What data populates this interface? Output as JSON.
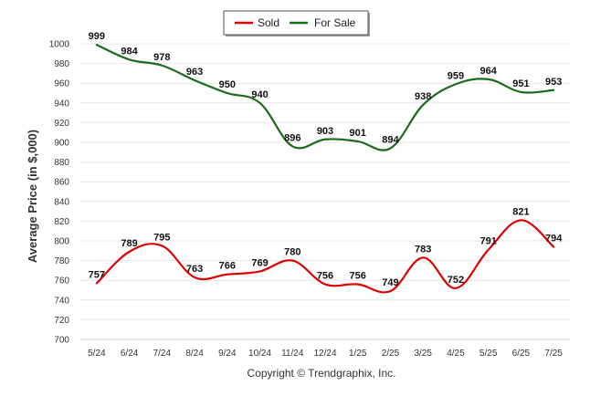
{
  "chart_data": {
    "type": "line",
    "title": "",
    "xlabel": "",
    "ylabel": "Average Price (in $,000)",
    "categories": [
      "5/24",
      "6/24",
      "7/24",
      "8/24",
      "9/24",
      "10/24",
      "11/24",
      "12/24",
      "1/25",
      "2/25",
      "3/25",
      "4/25",
      "5/25",
      "6/25",
      "7/25"
    ],
    "series": [
      {
        "name": "Sold",
        "color": "#dd0000",
        "values": [
          757,
          789,
          795,
          763,
          766,
          769,
          780,
          756,
          756,
          749,
          783,
          752,
          791,
          821,
          794
        ]
      },
      {
        "name": "For Sale",
        "color": "#1a6b1a",
        "values": [
          999,
          984,
          978,
          963,
          950,
          940,
          896,
          903,
          901,
          894,
          938,
          959,
          964,
          951,
          953
        ]
      }
    ],
    "ylim": [
      700,
      1000
    ],
    "yticks": [
      700,
      720,
      740,
      760,
      780,
      800,
      820,
      840,
      860,
      880,
      900,
      920,
      940,
      960,
      980,
      1000
    ],
    "grid": true,
    "legend_position": "top-center"
  },
  "footer": {
    "credit": "Copyright © Trendgraphix, Inc."
  }
}
